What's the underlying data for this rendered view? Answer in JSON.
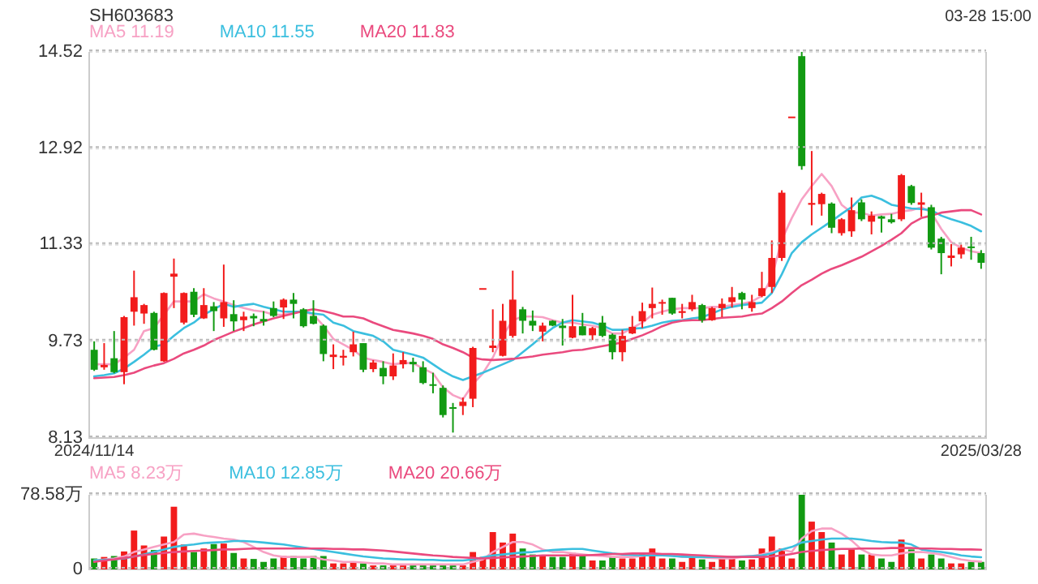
{
  "chart_data": [
    {
      "type": "candlestick",
      "title": "SH603683",
      "annotations": [
        "03-28 15:00"
      ],
      "legend": "top left",
      "grid": "y",
      "ylim": [
        8.13,
        14.52
      ],
      "yticks": [
        8.13,
        9.73,
        11.33,
        12.92,
        14.52
      ],
      "categories": [
        "2024/11/14",
        null,
        null,
        null,
        null,
        null,
        null,
        null,
        null,
        null,
        null,
        null,
        null,
        null,
        null,
        null,
        null,
        null,
        null,
        null,
        null,
        null,
        null,
        null,
        null,
        null,
        null,
        null,
        null,
        null,
        null,
        null,
        null,
        null,
        null,
        null,
        null,
        null,
        null,
        null,
        null,
        null,
        null,
        null,
        null,
        null,
        null,
        null,
        null,
        null,
        null,
        null,
        null,
        null,
        null,
        null,
        null,
        null,
        null,
        null,
        null,
        null,
        null,
        null,
        null,
        null,
        null,
        null,
        null,
        null,
        null,
        null,
        null,
        null,
        null,
        null,
        null,
        null,
        null,
        null,
        null,
        null,
        null,
        null,
        null,
        null,
        null,
        null,
        null,
        "2025/03/28"
      ],
      "ohlc": [
        [
          9.59,
          9.73,
          9.24,
          9.26
        ],
        [
          9.3,
          9.7,
          9.26,
          9.34
        ],
        [
          9.45,
          9.9,
          9.2,
          9.22
        ],
        [
          9.22,
          10.15,
          9.02,
          10.13
        ],
        [
          10.22,
          10.9,
          9.99,
          10.46
        ],
        [
          10.19,
          10.35,
          10.02,
          10.33
        ],
        [
          10.2,
          10.22,
          9.58,
          9.59
        ],
        [
          9.4,
          10.54,
          9.39,
          10.53
        ],
        [
          10.8,
          11.1,
          10.28,
          10.85
        ],
        [
          10.04,
          10.54,
          10.01,
          10.53
        ],
        [
          10.55,
          10.61,
          10.13,
          10.17
        ],
        [
          10.11,
          10.61,
          10.1,
          10.33
        ],
        [
          10.31,
          10.38,
          9.9,
          10.23
        ],
        [
          10.11,
          11.0,
          9.97,
          10.38
        ],
        [
          10.18,
          10.41,
          9.9,
          10.06
        ],
        [
          10.08,
          10.22,
          9.9,
          10.14
        ],
        [
          10.15,
          10.19,
          9.98,
          10.11
        ],
        [
          10.1,
          10.23,
          9.99,
          10.06
        ],
        [
          10.28,
          10.39,
          10.13,
          10.15
        ],
        [
          10.29,
          10.44,
          10.1,
          10.42
        ],
        [
          10.42,
          10.53,
          10.11,
          10.35
        ],
        [
          10.26,
          10.28,
          9.96,
          9.98
        ],
        [
          10.15,
          10.41,
          10.01,
          10.02
        ],
        [
          9.99,
          10.01,
          9.4,
          9.52
        ],
        [
          9.47,
          9.68,
          9.27,
          9.51
        ],
        [
          9.46,
          9.59,
          9.33,
          9.49
        ],
        [
          9.55,
          9.89,
          9.48,
          9.68
        ],
        [
          9.7,
          9.7,
          9.22,
          9.26
        ],
        [
          9.27,
          9.42,
          9.22,
          9.38
        ],
        [
          9.29,
          9.4,
          9.02,
          9.15
        ],
        [
          9.15,
          9.53,
          9.09,
          9.33
        ],
        [
          9.35,
          9.55,
          9.28,
          9.42
        ],
        [
          9.39,
          9.46,
          9.22,
          9.35
        ],
        [
          9.3,
          9.4,
          9.02,
          9.04
        ],
        [
          9.02,
          9.21,
          8.87,
          9.0
        ],
        [
          8.96,
          9.0,
          8.47,
          8.51
        ],
        [
          8.64,
          8.71,
          8.22,
          8.63
        ],
        [
          8.66,
          8.8,
          8.51,
          8.73
        ],
        [
          8.78,
          9.64,
          8.64,
          9.62
        ],
        [
          10.61,
          10.61,
          10.61,
          10.61
        ],
        [
          9.62,
          10.26,
          9.55,
          9.66
        ],
        [
          9.49,
          10.35,
          9.48,
          10.07
        ],
        [
          9.82,
          10.9,
          9.79,
          10.42
        ],
        [
          10.26,
          10.3,
          9.86,
          10.07
        ],
        [
          10.07,
          10.24,
          9.9,
          9.99
        ],
        [
          9.89,
          10.04,
          9.73,
          9.99
        ],
        [
          10.07,
          10.08,
          9.98,
          9.99
        ],
        [
          9.99,
          10.1,
          9.66,
          9.95
        ],
        [
          9.79,
          10.5,
          9.78,
          9.98
        ],
        [
          9.98,
          10.2,
          9.83,
          9.83
        ],
        [
          9.83,
          9.97,
          9.75,
          9.95
        ],
        [
          10.04,
          10.15,
          9.8,
          9.82
        ],
        [
          9.84,
          9.86,
          9.43,
          9.55
        ],
        [
          9.55,
          9.92,
          9.4,
          9.82
        ],
        [
          9.86,
          10.15,
          9.85,
          9.97
        ],
        [
          10.06,
          10.37,
          9.95,
          10.23
        ],
        [
          10.28,
          10.62,
          10.11,
          10.35
        ],
        [
          10.37,
          10.42,
          10.17,
          10.38
        ],
        [
          10.45,
          10.45,
          10.17,
          10.19
        ],
        [
          10.2,
          10.35,
          10.11,
          10.23
        ],
        [
          10.26,
          10.5,
          10.23,
          10.38
        ],
        [
          10.33,
          10.35,
          10.04,
          10.08
        ],
        [
          10.08,
          10.3,
          10.07,
          10.28
        ],
        [
          10.28,
          10.44,
          10.13,
          10.35
        ],
        [
          10.38,
          10.63,
          10.29,
          10.46
        ],
        [
          10.53,
          10.55,
          10.26,
          10.42
        ],
        [
          10.28,
          10.5,
          10.22,
          10.38
        ],
        [
          10.48,
          10.88,
          10.46,
          10.61
        ],
        [
          10.63,
          11.4,
          10.53,
          11.11
        ],
        [
          11.11,
          12.23,
          11.06,
          12.19
        ],
        [
          13.45,
          13.45,
          13.45,
          13.45
        ],
        [
          14.45,
          14.52,
          12.57,
          12.63
        ],
        [
          11.99,
          12.88,
          11.65,
          12.02
        ],
        [
          12.0,
          12.19,
          11.81,
          12.17
        ],
        [
          12.01,
          12.03,
          11.52,
          11.61
        ],
        [
          11.52,
          11.77,
          11.48,
          11.75
        ],
        [
          11.55,
          12.11,
          11.46,
          11.9
        ],
        [
          12.03,
          12.08,
          11.72,
          11.75
        ],
        [
          11.71,
          11.88,
          11.5,
          11.81
        ],
        [
          11.8,
          11.81,
          11.53,
          11.76
        ],
        [
          11.75,
          11.84,
          11.68,
          11.7
        ],
        [
          11.75,
          12.5,
          11.72,
          12.48
        ],
        [
          12.3,
          12.32,
          11.99,
          12.02
        ],
        [
          11.99,
          12.19,
          11.79,
          12.03
        ],
        [
          11.95,
          11.99,
          11.25,
          11.28
        ],
        [
          11.43,
          11.46,
          10.84,
          11.19
        ],
        [
          11.11,
          11.34,
          10.97,
          11.15
        ],
        [
          11.17,
          11.33,
          11.1,
          11.28
        ],
        [
          11.3,
          11.46,
          11.08,
          11.28
        ],
        [
          11.19,
          11.24,
          10.93,
          11.03
        ]
      ],
      "colors": [
        "#129a12",
        "#f21c1c",
        "#129a12",
        "#f21c1c",
        "#f21c1c",
        "#f21c1c",
        "#129a12",
        "#f21c1c",
        "#f21c1c",
        "#f21c1c",
        "#129a12",
        "#f21c1c",
        "#129a12",
        "#f21c1c",
        "#129a12",
        "#f21c1c",
        "#129a12",
        "#129a12",
        "#129a12",
        "#f21c1c",
        "#129a12",
        "#129a12",
        "#129a12",
        "#129a12",
        "#f21c1c",
        "#f21c1c",
        "#f21c1c",
        "#129a12",
        "#f21c1c",
        "#129a12",
        "#f21c1c",
        "#f21c1c",
        "#129a12",
        "#129a12",
        "#129a12",
        "#129a12",
        "#129a12",
        "#f21c1c",
        "#f21c1c",
        "#f21c1c",
        "#f21c1c",
        "#f21c1c",
        "#f21c1c",
        "#129a12",
        "#129a12",
        "#f21c1c",
        "#129a12",
        "#129a12",
        "#f21c1c",
        "#129a12",
        "#f21c1c",
        "#129a12",
        "#129a12",
        "#f21c1c",
        "#f21c1c",
        "#f21c1c",
        "#f21c1c",
        "#f21c1c",
        "#129a12",
        "#f21c1c",
        "#f21c1c",
        "#129a12",
        "#f21c1c",
        "#f21c1c",
        "#f21c1c",
        "#129a12",
        "#f21c1c",
        "#f21c1c",
        "#f21c1c",
        "#f21c1c",
        "#f21c1c",
        "#129a12",
        "#f21c1c",
        "#f21c1c",
        "#129a12",
        "#f21c1c",
        "#f21c1c",
        "#129a12",
        "#f21c1c",
        "#129a12",
        "#129a12",
        "#f21c1c",
        "#129a12",
        "#f21c1c",
        "#129a12",
        "#129a12",
        "#f21c1c",
        "#f21c1c",
        "#129a12",
        "#129a12"
      ],
      "series": [
        {
          "name": "MA5 11.19",
          "type": "line",
          "color": "#f7a1c4",
          "values": [
            9.35,
            9.35,
            9.35,
            9.46,
            9.59,
            9.9,
            9.95,
            10.17,
            10.39,
            10.39,
            10.39,
            10.51,
            10.44,
            10.39,
            10.33,
            10.28,
            10.24,
            10.22,
            10.17,
            10.17,
            10.22,
            10.22,
            10.17,
            9.99,
            9.77,
            9.68,
            9.59,
            9.46,
            9.42,
            9.39,
            9.35,
            9.37,
            9.37,
            9.28,
            9.2,
            8.97,
            8.84,
            8.77,
            9.02,
            9.2,
            9.46,
            9.82,
            10.08,
            10.14,
            10.14,
            10.13,
            10.08,
            10.04,
            10.04,
            10.01,
            9.99,
            9.95,
            9.86,
            9.86,
            9.95,
            10.04,
            10.17,
            10.22,
            10.26,
            10.28,
            10.28,
            10.28,
            10.3,
            10.3,
            10.33,
            10.35,
            10.39,
            10.48,
            10.79,
            11.41,
            11.77,
            12.08,
            12.3,
            12.5,
            12.3,
            11.99,
            11.86,
            11.86,
            11.81,
            11.83,
            11.84,
            11.88,
            11.9,
            11.95,
            11.86,
            11.59,
            11.37,
            11.28,
            11.22,
            11.19
          ]
        },
        {
          "name": "MA10 11.55",
          "type": "line",
          "color": "#3bbfdf",
          "values": [
            9.15,
            9.17,
            9.2,
            9.28,
            9.39,
            9.51,
            9.64,
            9.68,
            9.82,
            9.95,
            10.04,
            10.17,
            10.26,
            10.35,
            10.3,
            10.33,
            10.35,
            10.3,
            10.26,
            10.22,
            10.22,
            10.22,
            10.19,
            10.17,
            10.04,
            9.99,
            9.9,
            9.86,
            9.82,
            9.73,
            9.59,
            9.55,
            9.51,
            9.46,
            9.35,
            9.24,
            9.15,
            9.09,
            9.15,
            9.21,
            9.28,
            9.35,
            9.42,
            9.55,
            9.68,
            9.82,
            9.95,
            10.04,
            10.08,
            10.06,
            10.04,
            9.99,
            9.92,
            9.92,
            9.94,
            9.95,
            9.99,
            10.04,
            10.07,
            10.08,
            10.11,
            10.13,
            10.19,
            10.26,
            10.3,
            10.33,
            10.35,
            10.37,
            10.53,
            10.84,
            11.19,
            11.37,
            11.5,
            11.61,
            11.72,
            11.84,
            11.95,
            12.11,
            12.14,
            12.08,
            11.99,
            11.96,
            11.93,
            11.92,
            11.9,
            11.81,
            11.75,
            11.7,
            11.64,
            11.55
          ]
        },
        {
          "name": "MA20 11.83",
          "type": "line",
          "color": "#ea4a7e",
          "values": [
            9.12,
            9.13,
            9.14,
            9.17,
            9.21,
            9.28,
            9.33,
            9.37,
            9.44,
            9.53,
            9.59,
            9.66,
            9.75,
            9.82,
            9.89,
            9.95,
            10.01,
            10.06,
            10.11,
            10.15,
            10.19,
            10.23,
            10.26,
            10.23,
            10.19,
            10.14,
            10.14,
            10.11,
            10.04,
            9.98,
            9.92,
            9.89,
            9.86,
            9.82,
            9.77,
            9.68,
            9.62,
            9.55,
            9.46,
            9.43,
            9.42,
            9.43,
            9.44,
            9.46,
            9.48,
            9.51,
            9.53,
            9.55,
            9.58,
            9.59,
            9.62,
            9.65,
            9.68,
            9.71,
            9.77,
            9.83,
            9.9,
            9.98,
            10.04,
            10.07,
            10.08,
            10.08,
            10.1,
            10.12,
            10.13,
            10.14,
            10.17,
            10.19,
            10.28,
            10.39,
            10.53,
            10.66,
            10.75,
            10.85,
            10.93,
            10.99,
            11.06,
            11.13,
            11.22,
            11.31,
            11.41,
            11.52,
            11.68,
            11.77,
            11.81,
            11.86,
            11.88,
            11.9,
            11.9,
            11.83
          ]
        }
      ]
    },
    {
      "type": "bar",
      "legend": "top left",
      "grid": "y",
      "ylim": [
        0,
        78.58
      ],
      "yticks": [
        {
          "value": 78.58,
          "label": "78.58万"
        },
        0
      ],
      "categories": [
        null,
        null,
        null,
        null,
        null,
        null,
        null,
        null,
        null,
        null,
        null,
        null,
        null,
        null,
        null,
        null,
        null,
        null,
        null,
        null,
        null,
        null,
        null,
        null,
        null,
        null,
        null,
        null,
        null,
        null,
        null,
        null,
        null,
        null,
        null,
        null,
        null,
        null,
        null,
        null,
        null,
        null,
        null,
        null,
        null,
        null,
        null,
        null,
        null,
        null,
        null,
        null,
        null,
        null,
        null,
        null,
        null,
        null,
        null,
        null,
        null,
        null,
        null,
        null,
        null,
        null,
        null,
        null,
        null,
        null,
        null,
        null,
        null,
        null,
        null,
        null,
        null,
        null,
        null,
        null,
        null,
        null,
        null,
        null,
        null,
        null,
        null,
        null,
        null,
        null
      ],
      "series": [
        {
          "type": "bar",
          "values": [
            11.5,
            13.1,
            14.1,
            18.9,
            40.9,
            25.2,
            20.4,
            34.6,
            66.0,
            26.2,
            18.3,
            22.0,
            26.7,
            27.2,
            17.3,
            11.5,
            11.0,
            7.9,
            11.5,
            14.1,
            14.1,
            11.5,
            14.1,
            14.1,
            6.3,
            6.3,
            7.9,
            6.3,
            4.2,
            4.2,
            4.2,
            4.2,
            4.2,
            5.2,
            4.2,
            5.2,
            4.2,
            4.2,
            18.3,
            13.1,
            39.3,
            28.3,
            37.7,
            22.0,
            15.7,
            14.1,
            13.1,
            13.1,
            17.3,
            14.7,
            9.4,
            9.4,
            13.1,
            11.5,
            11.5,
            16.8,
            22.0,
            11.5,
            11.5,
            7.9,
            13.1,
            10.5,
            7.9,
            11.5,
            13.1,
            9.4,
            10.5,
            22.0,
            34.6,
            22.0,
            11.5,
            78.58,
            50.3,
            39.3,
            28.3,
            15.7,
            21.0,
            15.7,
            15.7,
            11.5,
            7.9,
            31.4,
            21.0,
            11.5,
            15.7,
            11.5,
            6.3,
            6.3,
            7.9,
            7.9
          ],
          "colors": [
            "#129a12",
            "#f21c1c",
            "#129a12",
            "#f21c1c",
            "#f21c1c",
            "#f21c1c",
            "#129a12",
            "#f21c1c",
            "#f21c1c",
            "#f21c1c",
            "#129a12",
            "#f21c1c",
            "#129a12",
            "#f21c1c",
            "#129a12",
            "#f21c1c",
            "#129a12",
            "#129a12",
            "#129a12",
            "#f21c1c",
            "#129a12",
            "#129a12",
            "#129a12",
            "#129a12",
            "#f21c1c",
            "#f21c1c",
            "#f21c1c",
            "#129a12",
            "#f21c1c",
            "#129a12",
            "#f21c1c",
            "#f21c1c",
            "#129a12",
            "#129a12",
            "#129a12",
            "#129a12",
            "#129a12",
            "#f21c1c",
            "#f21c1c",
            "#f21c1c",
            "#f21c1c",
            "#f21c1c",
            "#f21c1c",
            "#129a12",
            "#129a12",
            "#f21c1c",
            "#129a12",
            "#129a12",
            "#f21c1c",
            "#129a12",
            "#f21c1c",
            "#129a12",
            "#129a12",
            "#f21c1c",
            "#f21c1c",
            "#f21c1c",
            "#f21c1c",
            "#f21c1c",
            "#129a12",
            "#f21c1c",
            "#f21c1c",
            "#129a12",
            "#f21c1c",
            "#f21c1c",
            "#f21c1c",
            "#129a12",
            "#f21c1c",
            "#f21c1c",
            "#f21c1c",
            "#f21c1c",
            "#f21c1c",
            "#129a12",
            "#f21c1c",
            "#f21c1c",
            "#129a12",
            "#f21c1c",
            "#f21c1c",
            "#129a12",
            "#f21c1c",
            "#129a12",
            "#129a12",
            "#f21c1c",
            "#129a12",
            "#f21c1c",
            "#129a12",
            "#129a12",
            "#f21c1c",
            "#f21c1c",
            "#129a12",
            "#129a12"
          ]
        },
        {
          "name": "MA5 8.23万",
          "type": "line",
          "color": "#f7a1c4",
          "values": [
            9.4,
            10.5,
            11.5,
            13.6,
            18.3,
            21.0,
            23.6,
            26.2,
            28.8,
            36.7,
            37.7,
            35.6,
            34.1,
            32.5,
            31.4,
            28.8,
            23.6,
            18.3,
            14.7,
            13.1,
            13.1,
            13.1,
            13.1,
            10.5,
            9.4,
            7.9,
            7.9,
            7.3,
            6.3,
            6.3,
            5.2,
            5.2,
            5.2,
            5.2,
            5.2,
            5.2,
            5.2,
            5.2,
            7.9,
            10.5,
            18.3,
            23.6,
            28.8,
            28.8,
            26.2,
            21.0,
            18.3,
            18.3,
            16.8,
            15.7,
            14.7,
            14.1,
            13.1,
            13.1,
            13.1,
            14.1,
            15.7,
            15.7,
            14.7,
            13.1,
            13.1,
            12.6,
            12.1,
            11.5,
            11.5,
            13.1,
            14.1,
            15.7,
            18.3,
            21.0,
            18.3,
            32.5,
            40.3,
            43.0,
            43.0,
            37.7,
            30.4,
            21.0,
            15.7,
            14.7,
            14.7,
            16.8,
            18.3,
            18.3,
            17.3,
            15.7,
            13.1,
            10.5,
            8.9,
            8.23
          ]
        },
        {
          "name": "MA10 12.85万",
          "type": "line",
          "color": "#3bbfdf",
          "values": [
            9.4,
            10.0,
            10.5,
            11.5,
            13.6,
            15.7,
            18.3,
            21.0,
            23.6,
            25.2,
            26.2,
            27.8,
            28.3,
            28.8,
            29.9,
            29.9,
            29.3,
            28.3,
            27.2,
            26.2,
            24.6,
            23.1,
            21.5,
            19.9,
            18.3,
            16.8,
            15.2,
            13.6,
            12.6,
            11.5,
            11.0,
            10.5,
            10.5,
            10.0,
            10.0,
            9.4,
            9.4,
            9.4,
            10.5,
            12.6,
            14.7,
            15.7,
            16.8,
            17.8,
            18.3,
            19.4,
            20.4,
            21.0,
            21.5,
            21.5,
            19.9,
            18.3,
            16.8,
            15.7,
            15.2,
            14.7,
            14.7,
            14.7,
            14.1,
            13.6,
            13.1,
            13.1,
            13.1,
            13.1,
            13.1,
            13.6,
            14.1,
            14.7,
            16.8,
            21.0,
            23.6,
            28.3,
            29.9,
            31.4,
            32.5,
            32.5,
            32.5,
            31.4,
            29.9,
            28.8,
            28.3,
            28.3,
            26.2,
            21.0,
            19.4,
            18.3,
            16.8,
            14.7,
            13.6,
            12.85
          ]
        },
        {
          "name": "MA20 20.66万",
          "type": "line",
          "color": "#ea4a7e",
          "values": [
            7.9,
            9.4,
            10.5,
            12.1,
            13.6,
            15.2,
            16.2,
            17.3,
            18.3,
            18.9,
            19.4,
            19.9,
            20.4,
            21.0,
            21.0,
            21.5,
            22.0,
            22.0,
            22.0,
            22.0,
            22.0,
            22.0,
            22.0,
            22.0,
            21.5,
            21.5,
            21.0,
            21.0,
            20.4,
            19.9,
            18.9,
            17.8,
            16.8,
            15.7,
            14.7,
            14.1,
            13.1,
            12.6,
            12.1,
            11.5,
            12.1,
            12.6,
            13.1,
            13.6,
            14.1,
            14.7,
            14.7,
            14.7,
            14.7,
            14.7,
            15.2,
            15.7,
            16.2,
            16.2,
            16.8,
            16.8,
            16.8,
            16.2,
            16.2,
            15.7,
            15.2,
            14.7,
            14.1,
            13.6,
            13.1,
            13.1,
            13.1,
            13.1,
            13.6,
            14.7,
            16.2,
            18.3,
            19.4,
            20.4,
            21.0,
            21.5,
            21.5,
            22.0,
            22.0,
            22.0,
            22.5,
            22.5,
            22.5,
            22.0,
            22.0,
            21.5,
            21.5,
            21.0,
            21.0,
            20.66
          ]
        }
      ]
    }
  ]
}
